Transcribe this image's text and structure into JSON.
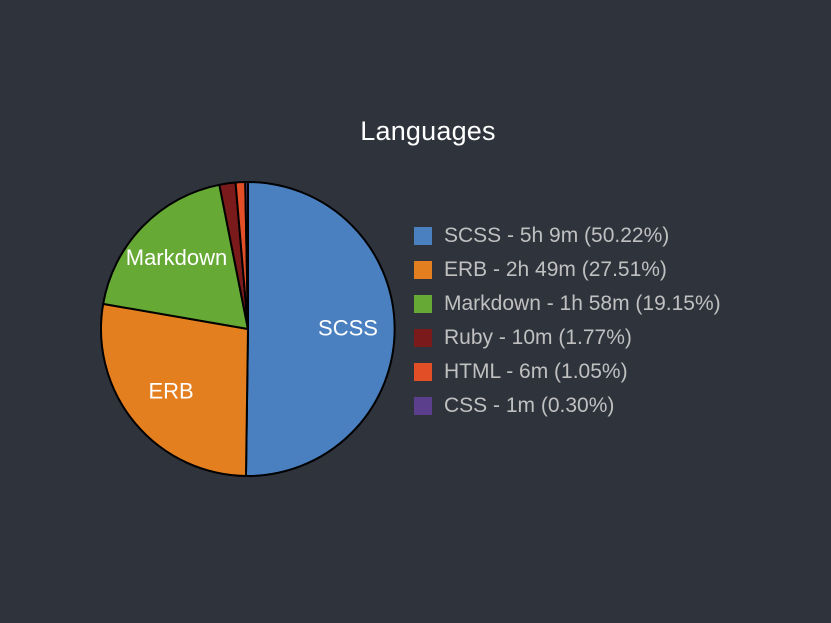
{
  "chart_data": {
    "type": "pie",
    "title": "Languages",
    "slices": [
      {
        "label": "SCSS",
        "legend": "SCSS - 5h 9m (50.22%)",
        "percent": 50.22,
        "color": "#4a80c0",
        "show_label": true
      },
      {
        "label": "ERB",
        "legend": "ERB - 2h 49m (27.51%)",
        "percent": 27.51,
        "color": "#e47f1f",
        "show_label": true
      },
      {
        "label": "Markdown",
        "legend": "Markdown - 1h 58m (19.15%)",
        "percent": 19.15,
        "color": "#66a934",
        "show_label": true
      },
      {
        "label": "Ruby",
        "legend": "Ruby - 10m (1.77%)",
        "percent": 1.77,
        "color": "#7a1a1a",
        "show_label": false
      },
      {
        "label": "HTML",
        "legend": "HTML - 6m (1.05%)",
        "percent": 1.05,
        "color": "#e24f27",
        "show_label": false
      },
      {
        "label": "CSS",
        "legend": "CSS - 1m (0.30%)",
        "percent": 0.3,
        "color": "#5b3f8c",
        "show_label": false
      }
    ],
    "legend_position": "right"
  }
}
